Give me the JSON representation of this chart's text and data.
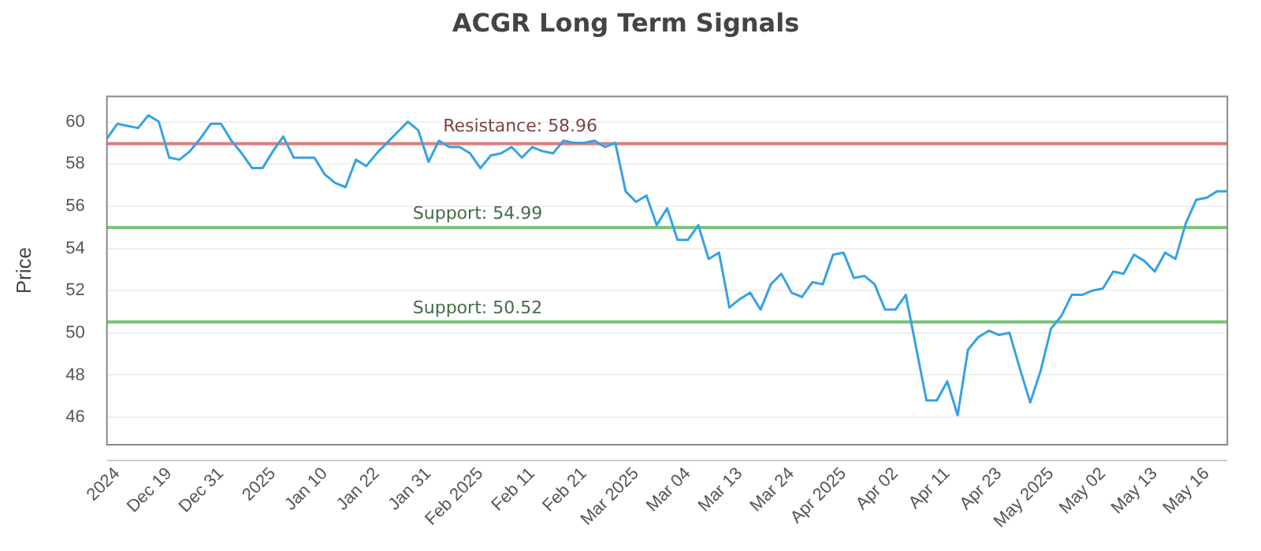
{
  "chart_data": {
    "type": "line",
    "title": "ACGR Long Term Signals",
    "ylabel": "Price",
    "categories": [
      null,
      "2024",
      null,
      null,
      null,
      null,
      "Dec 19",
      null,
      null,
      null,
      null,
      "Dec 31",
      null,
      null,
      null,
      null,
      "2025",
      null,
      null,
      null,
      null,
      "Jan 10",
      null,
      null,
      null,
      null,
      "Jan 22",
      null,
      null,
      null,
      null,
      "Jan 31",
      null,
      null,
      null,
      null,
      "Feb 2025",
      null,
      null,
      null,
      null,
      "Feb 11",
      null,
      null,
      null,
      null,
      "Feb 21",
      null,
      null,
      null,
      null,
      "Mar 2025",
      null,
      null,
      null,
      null,
      "Mar 04",
      null,
      null,
      null,
      null,
      "Mar 13",
      null,
      null,
      null,
      null,
      "Mar 24",
      null,
      null,
      null,
      null,
      "Apr 2025",
      null,
      null,
      null,
      null,
      "Apr 02",
      null,
      null,
      null,
      null,
      "Apr 11",
      null,
      null,
      null,
      null,
      "Apr 23",
      null,
      null,
      null,
      null,
      "May 2025",
      null,
      null,
      null,
      null,
      "May 02",
      null,
      null,
      null,
      null,
      "May 13",
      null,
      null,
      null,
      null,
      "May 16",
      null,
      null
    ],
    "series": [
      {
        "color": "#35a2e6",
        "values": [
          59.2,
          59.9,
          59.8,
          59.7,
          60.3,
          60.0,
          58.3,
          58.2,
          58.6,
          59.2,
          59.9,
          59.9,
          59.1,
          58.5,
          57.8,
          57.8,
          58.6,
          59.3,
          58.3,
          58.3,
          58.3,
          57.5,
          57.1,
          56.9,
          58.2,
          57.9,
          58.5,
          59.0,
          59.5,
          60.0,
          59.6,
          58.1,
          59.1,
          58.8,
          58.8,
          58.5,
          57.8,
          58.4,
          58.5,
          58.8,
          58.3,
          58.8,
          58.6,
          58.5,
          59.1,
          59.0,
          59.0,
          59.1,
          58.8,
          59.0,
          56.7,
          56.2,
          56.5,
          55.1,
          55.9,
          54.4,
          54.4,
          55.1,
          53.5,
          53.8,
          51.2,
          51.6,
          51.9,
          51.1,
          52.3,
          52.8,
          51.9,
          51.7,
          52.4,
          52.3,
          53.7,
          53.8,
          52.6,
          52.7,
          52.3,
          51.1,
          51.1,
          51.8,
          49.3,
          46.8,
          46.8,
          47.7,
          46.1,
          49.2,
          49.8,
          50.1,
          49.9,
          50.0,
          48.3,
          46.7,
          48.2,
          50.2,
          50.8,
          51.8,
          51.8,
          52.0,
          52.1,
          52.9,
          52.8,
          53.7,
          53.4,
          52.9,
          53.8,
          53.5,
          55.2,
          56.3,
          56.4,
          56.7,
          56.7
        ]
      }
    ],
    "ylim": [
      44.7,
      61.2
    ],
    "yticks": [
      46,
      48,
      50,
      52,
      54,
      56,
      58,
      60
    ],
    "grid": "y",
    "marker": "none",
    "line_style": "solid",
    "legend": false,
    "ref_lines": [
      {
        "axis": "y",
        "value": 58.96,
        "label": "Resistance: 58.96",
        "color": "#e07b7b"
      },
      {
        "axis": "y",
        "value": 54.99,
        "label": "Support: 54.99",
        "color": "#7cc47c"
      },
      {
        "axis": "y",
        "value": 50.52,
        "label": "Support: 50.52",
        "color": "#7cc47c"
      }
    ]
  }
}
